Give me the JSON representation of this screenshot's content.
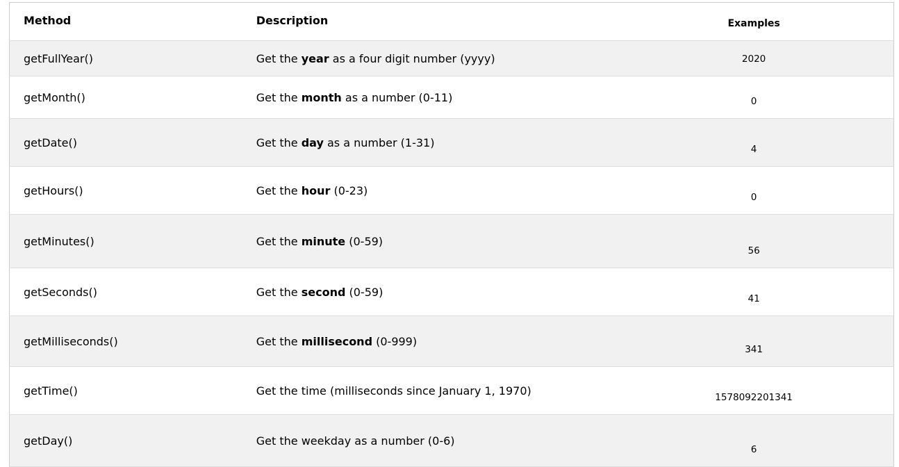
{
  "table": {
    "headers": {
      "method": "Method",
      "description": "Description",
      "examples": "Examples"
    },
    "rows": [
      {
        "method": "getFullYear()",
        "pre": "Get the ",
        "bold": "year",
        "post": " as a four digit number (yyyy)",
        "example": "2020"
      },
      {
        "method": "getMonth()",
        "pre": "Get the ",
        "bold": "month",
        "post": " as a number (0-11)",
        "example": "0"
      },
      {
        "method": "getDate()",
        "pre": "Get the ",
        "bold": "day",
        "post": " as a number (1-31)",
        "example": "4"
      },
      {
        "method": "getHours()",
        "pre": "Get the ",
        "bold": "hour",
        "post": " (0-23)",
        "example": "0"
      },
      {
        "method": "getMinutes()",
        "pre": "Get the ",
        "bold": "minute",
        "post": " (0-59)",
        "example": "56"
      },
      {
        "method": "getSeconds()",
        "pre": "Get the ",
        "bold": "second",
        "post": " (0-59)",
        "example": "41"
      },
      {
        "method": "getMilliseconds()",
        "pre": "Get the ",
        "bold": "millisecond",
        "post": " (0-999)",
        "example": "341"
      },
      {
        "method": "getTime()",
        "pre": "Get the time (milliseconds since January 1, 1970)",
        "bold": "",
        "post": "",
        "example": "1578092201341"
      },
      {
        "method": "getDay()",
        "pre": "Get the weekday as a number (0-6)",
        "bold": "",
        "post": "",
        "example": "6"
      }
    ]
  }
}
